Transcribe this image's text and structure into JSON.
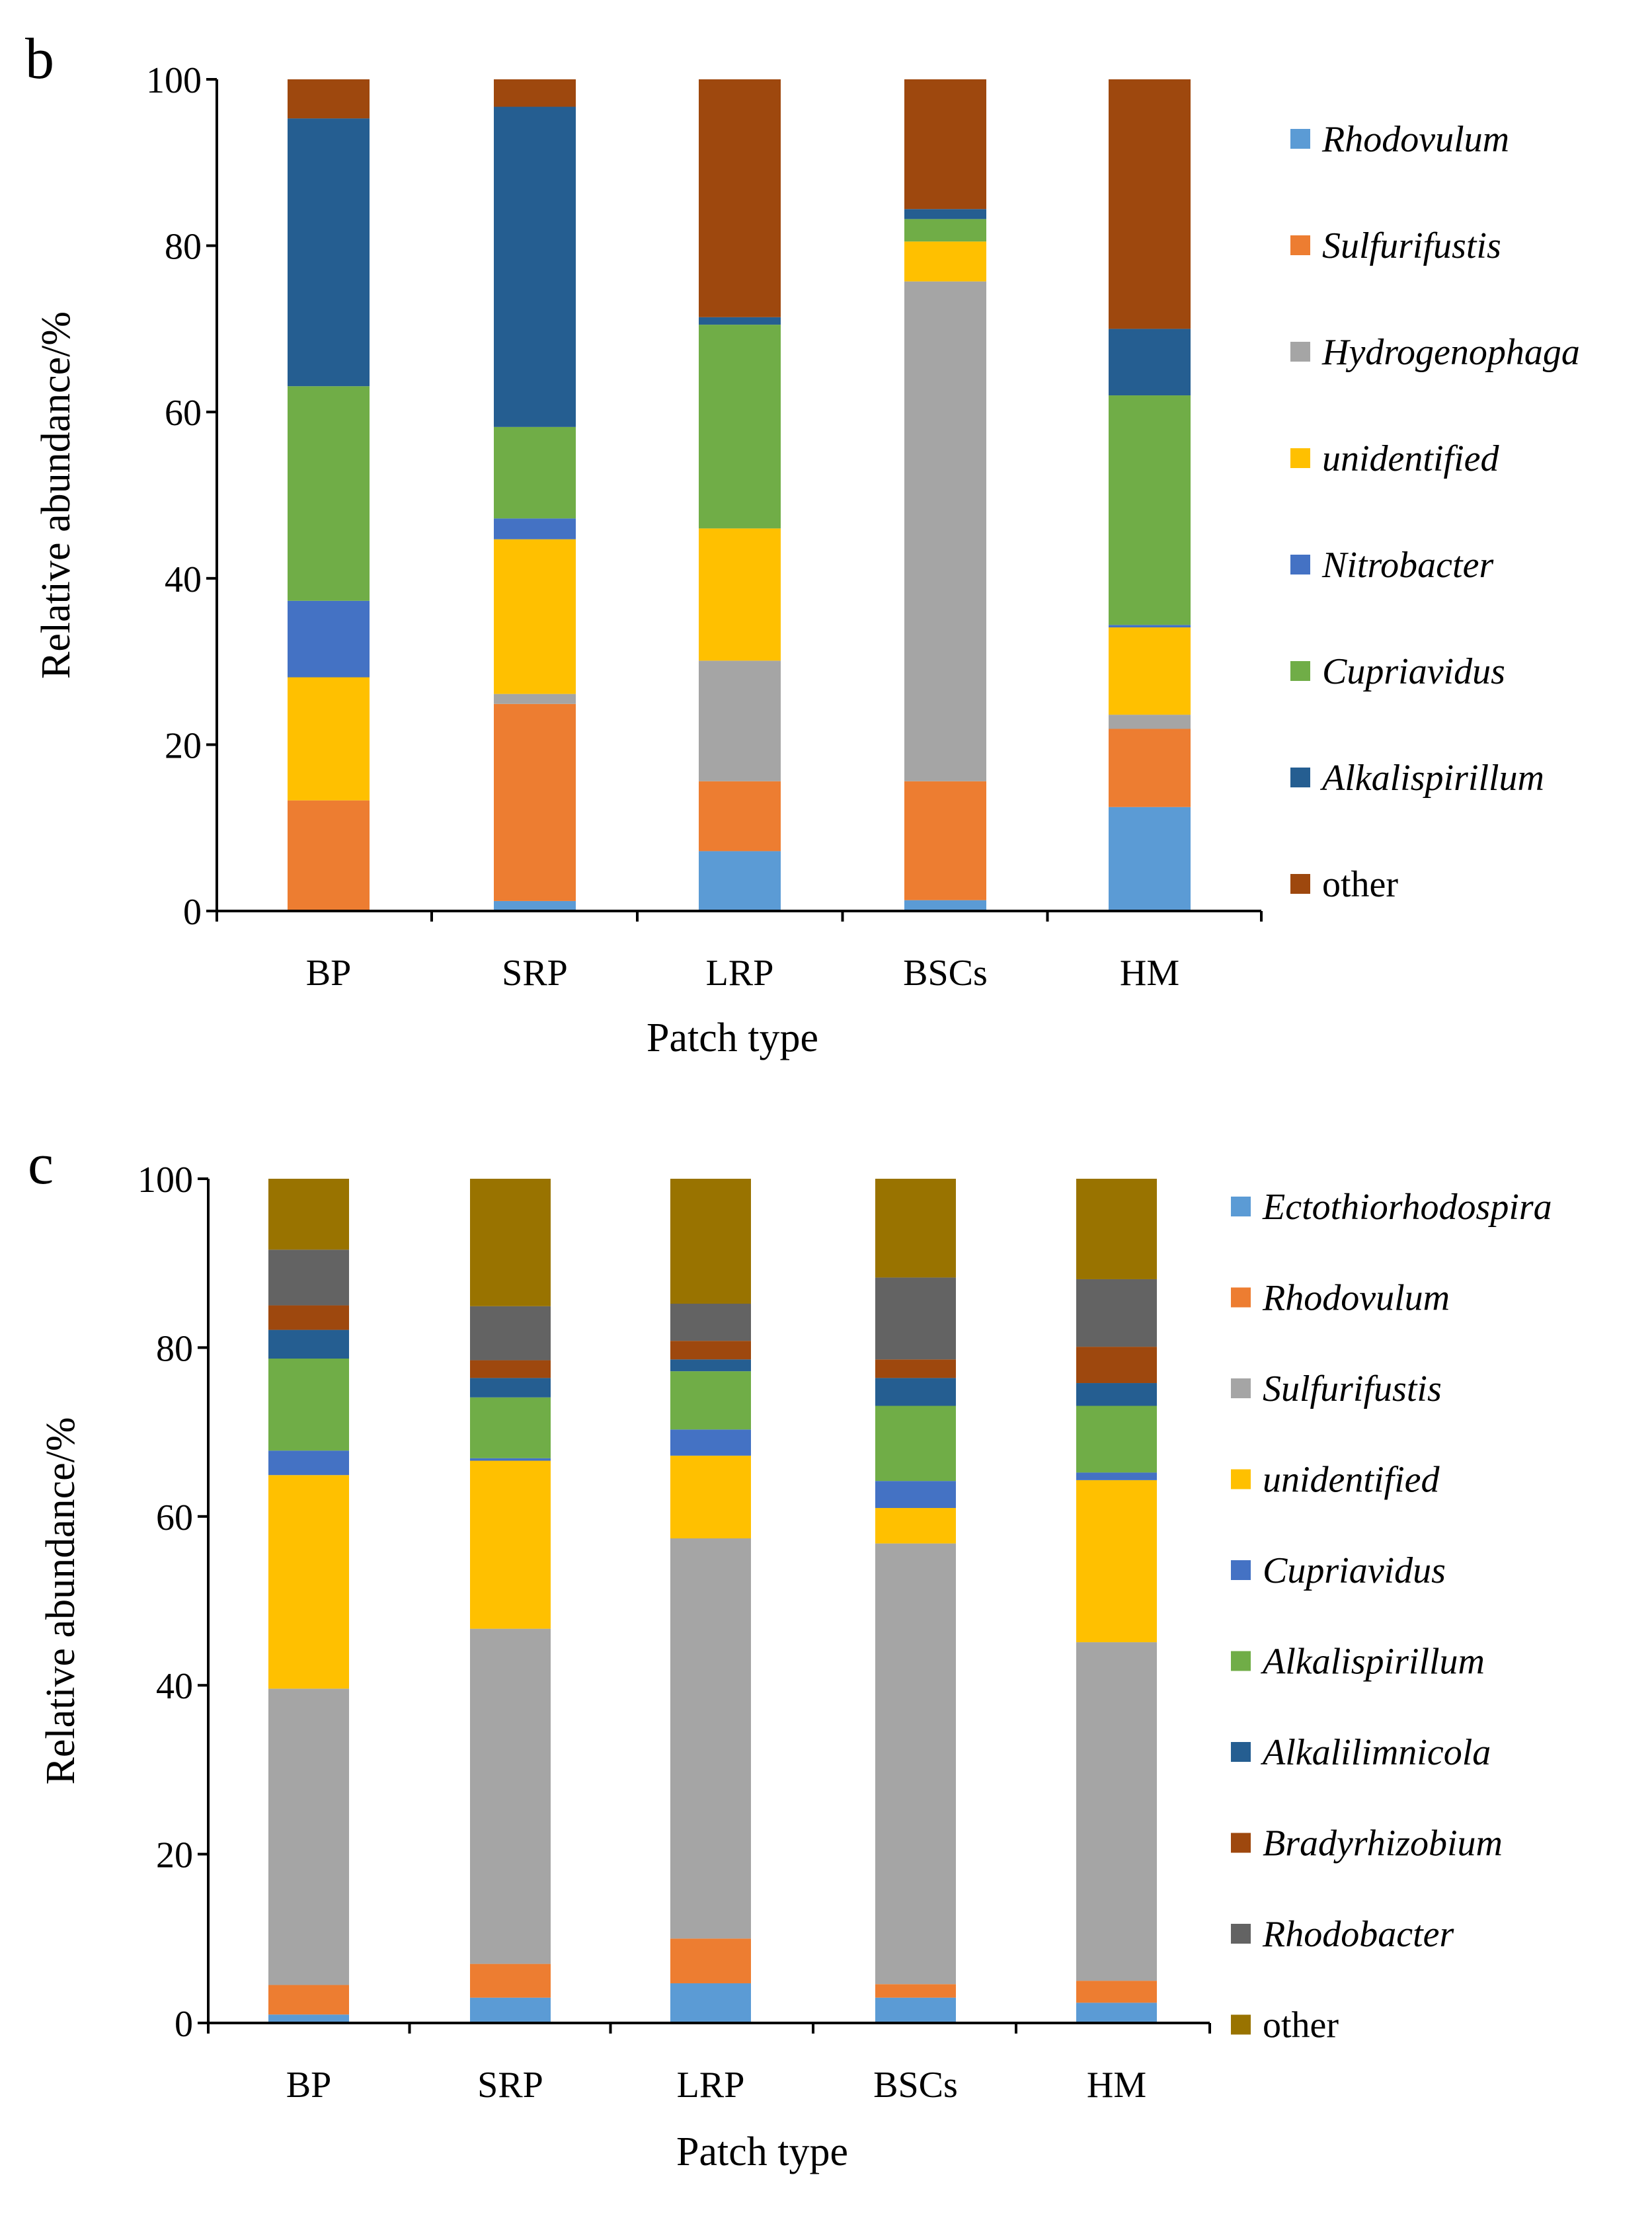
{
  "chart_data": [
    {
      "panel_label": "b",
      "type": "bar",
      "stacked": true,
      "xlabel": "Patch type",
      "ylabel": "Relative abundance/%",
      "ylim": [
        0,
        100
      ],
      "yticks": [
        0,
        20,
        40,
        60,
        80,
        100
      ],
      "categories": [
        "BP",
        "SRP",
        "LRP",
        "BSCs",
        "HM"
      ],
      "legend_position": "right",
      "series": [
        {
          "name": "Rhodovulum",
          "italic": true,
          "color": "#5B9BD5",
          "values": [
            0,
            1.2,
            7.2,
            1.3,
            12.5
          ]
        },
        {
          "name": "Sulfurifustis",
          "italic": true,
          "color": "#ED7D31",
          "values": [
            13.3,
            23.7,
            8.4,
            14.3,
            9.4
          ]
        },
        {
          "name": "Hydrogenophaga",
          "italic": true,
          "color": "#A5A5A5",
          "values": [
            0,
            1.2,
            14.5,
            60.1,
            1.7
          ]
        },
        {
          "name": "unidentified",
          "italic": true,
          "color": "#FFC000",
          "values": [
            14.8,
            18.6,
            15.9,
            4.8,
            10.5
          ]
        },
        {
          "name": "Nitrobacter",
          "italic": true,
          "color": "#4472C4",
          "values": [
            9.2,
            2.5,
            0,
            0,
            0.3
          ]
        },
        {
          "name": "Cupriavidus",
          "italic": true,
          "color": "#70AD47",
          "values": [
            25.8,
            11.0,
            24.5,
            2.7,
            27.6
          ]
        },
        {
          "name": "Alkalispirillum",
          "italic": true,
          "color": "#255E91",
          "values": [
            32.2,
            38.5,
            0.9,
            1.2,
            8.0
          ]
        },
        {
          "name": "other",
          "italic": false,
          "color": "#9E480E",
          "values": [
            4.7,
            3.3,
            28.6,
            15.6,
            30.0
          ]
        }
      ]
    },
    {
      "panel_label": "c",
      "type": "bar",
      "stacked": true,
      "xlabel": "Patch type",
      "ylabel": "Relative abundance/%",
      "ylim": [
        0,
        100
      ],
      "yticks": [
        0,
        20,
        40,
        60,
        80,
        100
      ],
      "categories": [
        "BP",
        "SRP",
        "LRP",
        "BSCs",
        "HM"
      ],
      "legend_position": "right",
      "series": [
        {
          "name": "Ectothiorhodospira",
          "italic": true,
          "color": "#5B9BD5",
          "values": [
            1.0,
            3.0,
            4.7,
            3.0,
            2.4
          ]
        },
        {
          "name": "Rhodovulum",
          "italic": true,
          "color": "#ED7D31",
          "values": [
            3.5,
            4.0,
            5.3,
            1.6,
            2.6
          ]
        },
        {
          "name": "Sulfurifustis",
          "italic": true,
          "color": "#A5A5A5",
          "values": [
            35.1,
            39.7,
            47.4,
            52.2,
            40.1
          ]
        },
        {
          "name": "unidentified",
          "italic": true,
          "color": "#FFC000",
          "values": [
            25.3,
            19.9,
            9.8,
            4.2,
            19.2
          ]
        },
        {
          "name": "Cupriavidus",
          "italic": true,
          "color": "#4472C4",
          "values": [
            2.9,
            0.3,
            3.1,
            3.2,
            0.9
          ]
        },
        {
          "name": "Alkalispirillum",
          "italic": true,
          "color": "#70AD47",
          "values": [
            10.9,
            7.2,
            6.9,
            8.9,
            7.9
          ]
        },
        {
          "name": "Alkalilimnicola",
          "italic": true,
          "color": "#255E91",
          "values": [
            3.4,
            2.3,
            1.4,
            3.3,
            2.7
          ]
        },
        {
          "name": "Bradyrhizobium",
          "italic": true,
          "color": "#9E480E",
          "values": [
            2.9,
            2.1,
            2.2,
            2.2,
            4.3
          ]
        },
        {
          "name": "Rhodobacter",
          "italic": true,
          "color": "#636363",
          "values": [
            6.6,
            6.4,
            4.4,
            9.7,
            8.0
          ]
        },
        {
          "name": "other",
          "italic": false,
          "color": "#997300",
          "values": [
            8.4,
            15.1,
            14.8,
            11.7,
            11.9
          ]
        }
      ]
    }
  ]
}
